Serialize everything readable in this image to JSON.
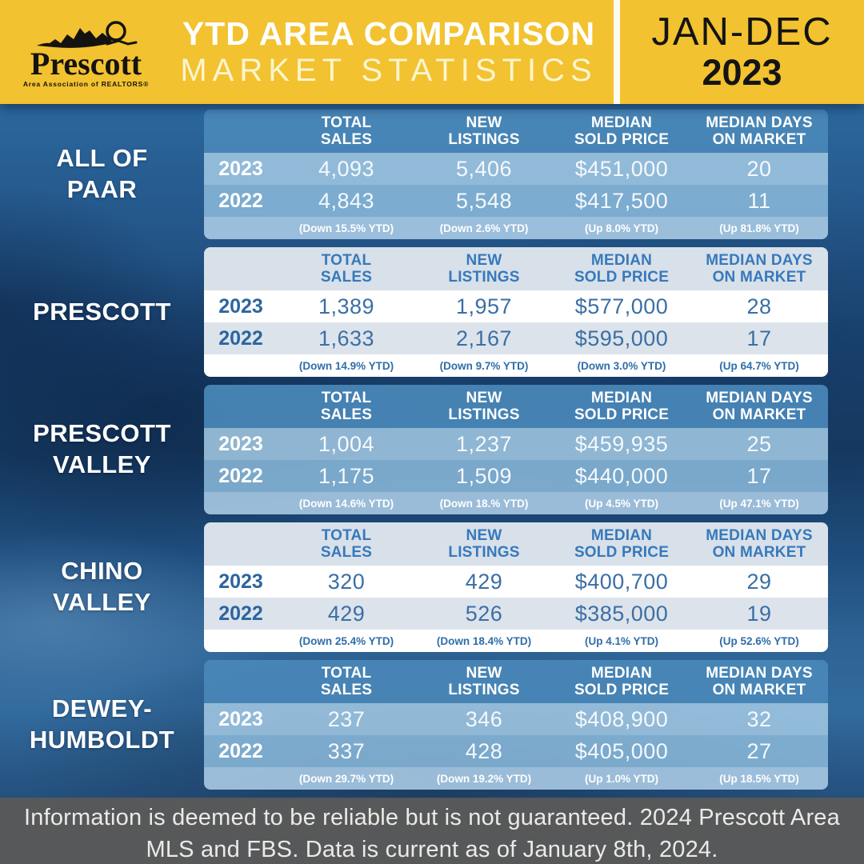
{
  "header": {
    "logo": {
      "name": "Prescott",
      "tagline": "Area Association of REALTORS®"
    },
    "title_line1": "YTD AREA COMPARISON",
    "title_line2": "MARKET STATISTICS",
    "period_line1": "JAN-DEC",
    "period_line2": "2023",
    "bg_color": "#F2C230"
  },
  "chart_data": {
    "type": "table",
    "columns": [
      "TOTAL\nSALES",
      "NEW\nLISTINGS",
      "MEDIAN\nSOLD PRICE",
      "MEDIAN DAYS\nON MARKET"
    ],
    "tables": [
      {
        "area": "ALL OF PAAR",
        "label_lines": [
          "ALL OF",
          "PAAR"
        ],
        "style": "blue",
        "rows": [
          {
            "year": "2023",
            "values": [
              "4,093",
              "5,406",
              "$451,000",
              "20"
            ]
          },
          {
            "year": "2022",
            "values": [
              "4,843",
              "5,548",
              "$417,500",
              "11"
            ]
          }
        ],
        "change": [
          "(Down 15.5% YTD)",
          "(Down 2.6% YTD)",
          "(Up 8.0% YTD)",
          "(Up 81.8% YTD)"
        ]
      },
      {
        "area": "PRESCOTT",
        "label_lines": [
          "PRESCOTT"
        ],
        "style": "white",
        "rows": [
          {
            "year": "2023",
            "values": [
              "1,389",
              "1,957",
              "$577,000",
              "28"
            ]
          },
          {
            "year": "2022",
            "values": [
              "1,633",
              "2,167",
              "$595,000",
              "17"
            ]
          }
        ],
        "change": [
          "(Down 14.9% YTD)",
          "(Down 9.7% YTD)",
          "(Down 3.0% YTD)",
          "(Up 64.7% YTD)"
        ]
      },
      {
        "area": "PRESCOTT VALLEY",
        "label_lines": [
          "PRESCOTT",
          "VALLEY"
        ],
        "style": "blue",
        "rows": [
          {
            "year": "2023",
            "values": [
              "1,004",
              "1,237",
              "$459,935",
              "25"
            ]
          },
          {
            "year": "2022",
            "values": [
              "1,175",
              "1,509",
              "$440,000",
              "17"
            ]
          }
        ],
        "change": [
          "(Down 14.6% YTD)",
          "(Down 18.% YTD)",
          "(Up 4.5% YTD)",
          "(Up 47.1% YTD)"
        ]
      },
      {
        "area": "CHINO VALLEY",
        "label_lines": [
          "CHINO",
          "VALLEY"
        ],
        "style": "white",
        "rows": [
          {
            "year": "2023",
            "values": [
              "320",
              "429",
              "$400,700",
              "29"
            ]
          },
          {
            "year": "2022",
            "values": [
              "429",
              "526",
              "$385,000",
              "19"
            ]
          }
        ],
        "change": [
          "(Down 25.4% YTD)",
          "(Down 18.4% YTD)",
          "(Up 4.1% YTD)",
          "(Up 52.6% YTD)"
        ]
      },
      {
        "area": "DEWEY-HUMBOLDT",
        "label_lines": [
          "DEWEY-",
          "HUMBOLDT"
        ],
        "style": "blue",
        "rows": [
          {
            "year": "2023",
            "values": [
              "237",
              "346",
              "$408,900",
              "32"
            ]
          },
          {
            "year": "2022",
            "values": [
              "337",
              "428",
              "$405,000",
              "27"
            ]
          }
        ],
        "change": [
          "(Down 29.7% YTD)",
          "(Down 19.2% YTD)",
          "(Up 1.0% YTD)",
          "(Up 18.5% YTD)"
        ]
      }
    ]
  },
  "footer": {
    "line1": "Information is deemed to be reliable but is not guaranteed. 2024 Prescott Area",
    "line2": "MLS and FBS. Data is current as of January 8th, 2024."
  },
  "colors": {
    "header_yellow": "#F2C230",
    "blue_table_header": "#4A88B8",
    "blue_row_2023": "#A0C7E3",
    "blue_row_2022": "#89B7D8",
    "blue_change_row": "#ACCDE7",
    "white_table_header": "#D8E0E9",
    "white_row_alt": "#DCE3EB",
    "table_blue_text": "#3679BC",
    "footer_bg": "#57585A",
    "background_blue": "#1A4472"
  }
}
